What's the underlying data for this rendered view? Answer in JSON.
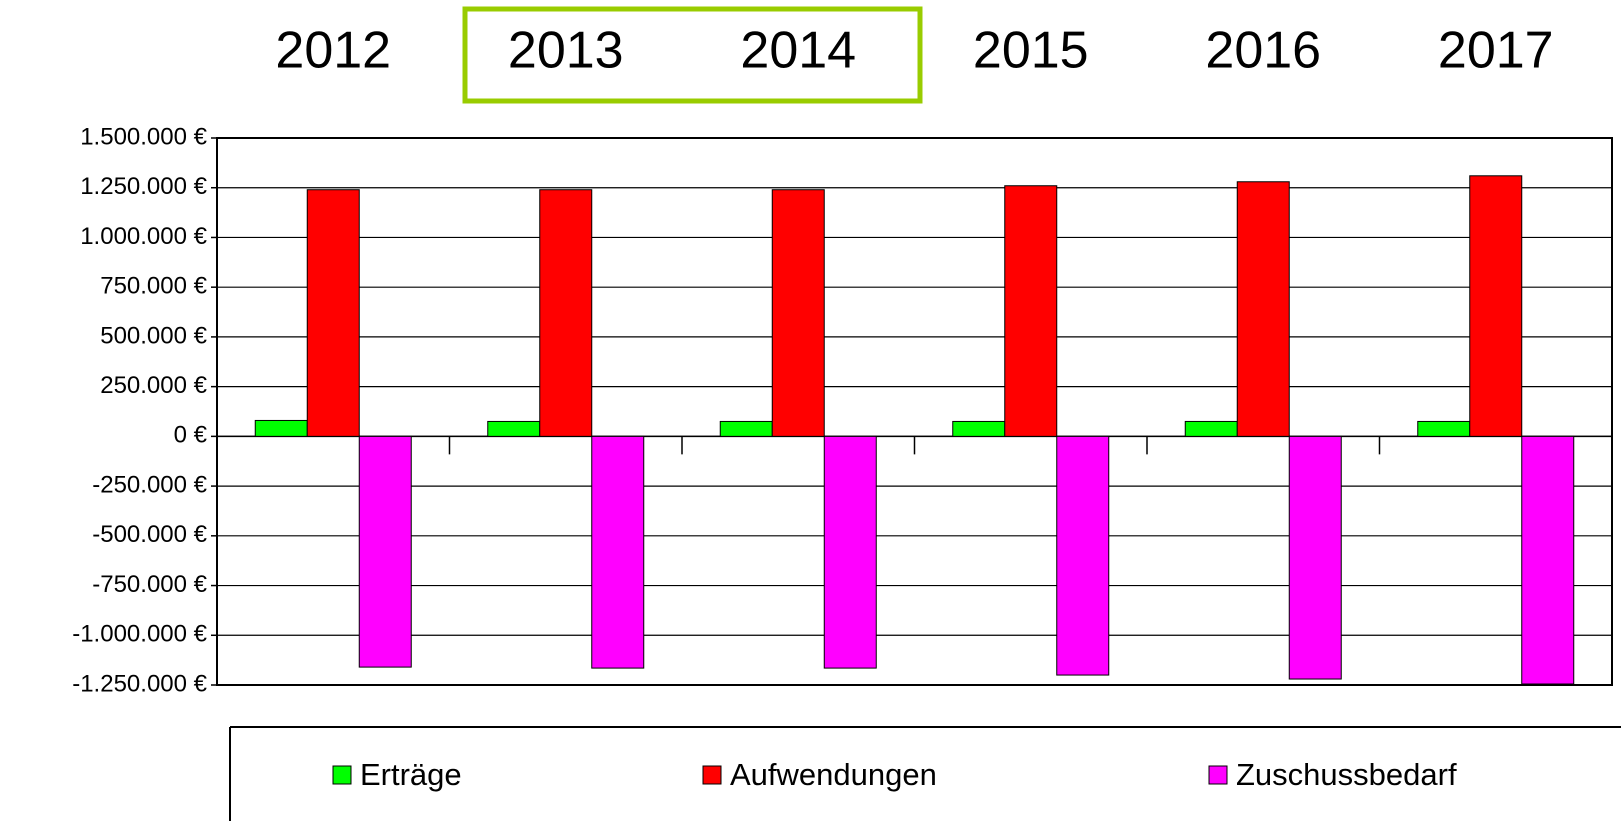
{
  "chart_data": {
    "type": "bar",
    "categories": [
      "2012",
      "2013",
      "2014",
      "2015",
      "2016",
      "2017"
    ],
    "series": [
      {
        "name": "Erträge",
        "color": "#00ff00",
        "values": [
          80000,
          75000,
          75000,
          75000,
          75000,
          75000
        ]
      },
      {
        "name": "Aufwendungen",
        "color": "#ff0000",
        "values": [
          1240000,
          1240000,
          1240000,
          1260000,
          1280000,
          1310000
        ]
      },
      {
        "name": "Zuschussbedarf",
        "color": "#ff00ff",
        "values": [
          -1160000,
          -1165000,
          -1165000,
          -1200000,
          -1220000,
          -1245000
        ]
      }
    ],
    "ylim": [
      -1250000,
      1500000
    ],
    "yticks": [
      {
        "value": 1500000,
        "label": "1.500.000 €"
      },
      {
        "value": 1250000,
        "label": "1.250.000 €"
      },
      {
        "value": 1000000,
        "label": "1.000.000 €"
      },
      {
        "value": 750000,
        "label": "750.000 €"
      },
      {
        "value": 500000,
        "label": "500.000 €"
      },
      {
        "value": 250000,
        "label": "250.000 €"
      },
      {
        "value": 0,
        "label": "0 €"
      },
      {
        "value": -250000,
        "label": "-250.000 €"
      },
      {
        "value": -500000,
        "label": "-500.000 €"
      },
      {
        "value": -750000,
        "label": "-750.000 €"
      },
      {
        "value": -1000000,
        "label": "-1.000.000 €"
      },
      {
        "value": -1250000,
        "label": "-1.250.000 €"
      }
    ],
    "grid": true,
    "legend": "bottom"
  }
}
